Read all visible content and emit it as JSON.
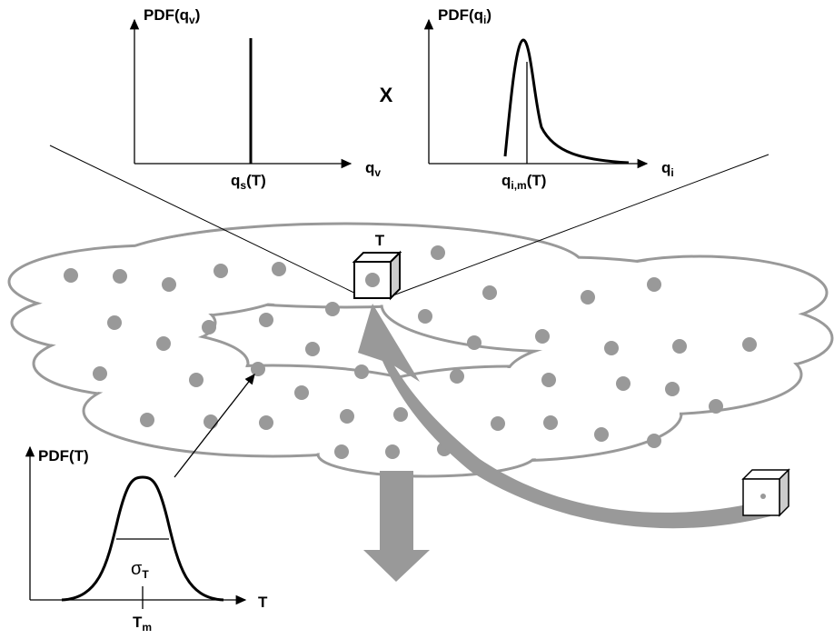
{
  "top_left_plot": {
    "y_label": {
      "main": "PDF(q",
      "sub": "v",
      "end": ")"
    },
    "x_label": {
      "main": "q",
      "sub": "v"
    },
    "marker_label": {
      "main": "q",
      "sub": "s",
      "end": "(T)"
    }
  },
  "operator": "X",
  "top_right_plot": {
    "y_label": {
      "main": "PDF(q",
      "sub": "i",
      "end": ")"
    },
    "x_label": {
      "main": "q",
      "sub": "i"
    },
    "marker_label": {
      "main": "q",
      "sub": "i,m",
      "end": "(T)"
    }
  },
  "cell_label": "T",
  "bottom_plot": {
    "y_label": "PDF(T)",
    "x_label": "T",
    "width_label": {
      "main": "σ",
      "sub": "T"
    },
    "mean_label": {
      "main": "T",
      "sub": "m"
    }
  }
}
